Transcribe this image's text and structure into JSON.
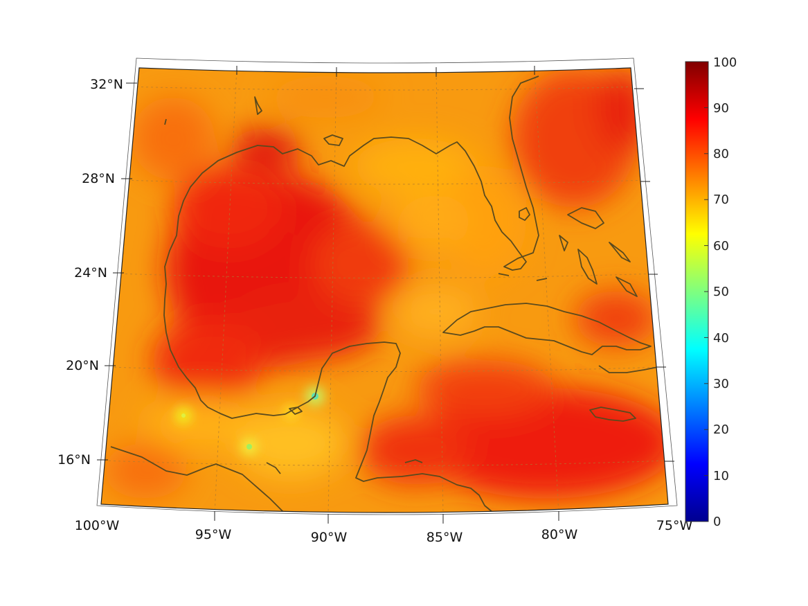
{
  "map": {
    "region": "Gulf of Mexico and Caribbean",
    "lon_labels": [
      "100°W",
      "95°W",
      "90°W",
      "85°W",
      "80°W",
      "75°W"
    ],
    "lat_labels": [
      "32°N",
      "28°N",
      "24°N",
      "20°N",
      "16°N"
    ],
    "colorbar": {
      "colormap": "jet",
      "min": 0,
      "max": 100,
      "ticks": [
        "0",
        "10",
        "20",
        "30",
        "40",
        "50",
        "60",
        "70",
        "80",
        "90",
        "100"
      ]
    },
    "colors": {
      "coast": "#5a4a1e",
      "grid": "#b07a30",
      "frame": "#222222"
    }
  }
}
